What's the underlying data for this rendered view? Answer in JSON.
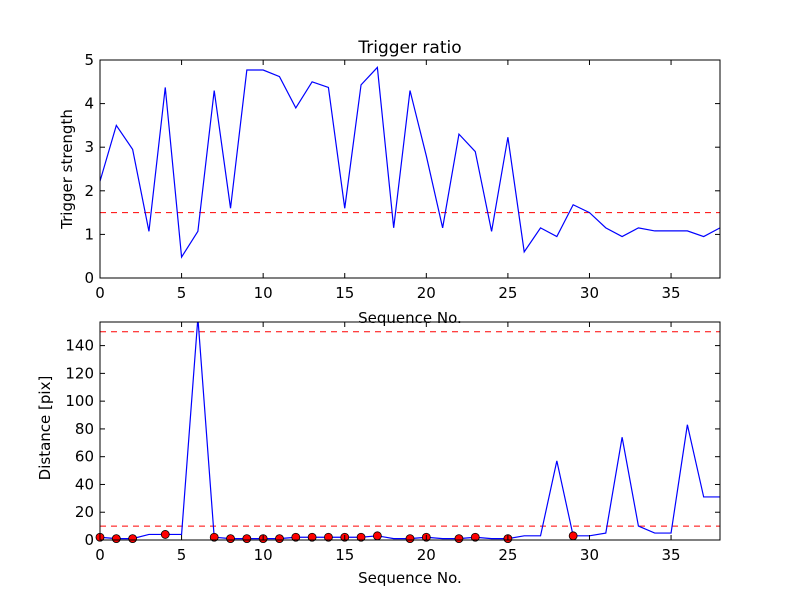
{
  "chart_data": [
    {
      "type": "line",
      "title": "Trigger ratio",
      "xlabel": "Sequence No.",
      "ylabel": "Trigger strength",
      "xlim": [
        0,
        38
      ],
      "ylim": [
        0,
        5
      ],
      "xticks": [
        0,
        5,
        10,
        15,
        20,
        25,
        30,
        35
      ],
      "yticks": [
        0,
        1,
        2,
        3,
        4,
        5
      ],
      "grid": false,
      "series": [
        {
          "color": "#0000ff",
          "x": [
            0,
            1,
            2,
            3,
            4,
            5,
            6,
            7,
            8,
            9,
            10,
            11,
            12,
            13,
            14,
            15,
            16,
            17,
            18,
            19,
            20,
            21,
            22,
            23,
            24,
            25,
            26,
            27,
            28,
            29,
            30,
            31,
            32,
            33,
            34,
            35,
            36,
            37,
            38
          ],
          "y": [
            2.22,
            3.5,
            2.95,
            1.07,
            4.37,
            0.48,
            1.07,
            4.3,
            1.6,
            4.77,
            4.77,
            4.62,
            3.9,
            4.5,
            4.37,
            1.6,
            4.43,
            4.83,
            1.15,
            4.3,
            2.8,
            1.15,
            3.3,
            2.9,
            1.07,
            3.23,
            0.6,
            1.15,
            0.95,
            1.68,
            1.5,
            1.15,
            0.95,
            1.15,
            1.08,
            1.08,
            1.08,
            0.95,
            1.15
          ]
        }
      ],
      "reference_lines": [
        {
          "orientation": "horizontal",
          "y": 1.5,
          "color": "#ff0000",
          "style": "dashed"
        }
      ]
    },
    {
      "type": "line",
      "title": "",
      "xlabel": "Sequence No.",
      "ylabel": "Distance [pix]",
      "xlim": [
        0,
        38
      ],
      "ylim": [
        0,
        157
      ],
      "xticks": [
        0,
        5,
        10,
        15,
        20,
        25,
        30,
        35
      ],
      "yticks": [
        0,
        20,
        40,
        60,
        80,
        100,
        120,
        140
      ],
      "grid": false,
      "series": [
        {
          "color": "#0000ff",
          "x": [
            0,
            1,
            2,
            3,
            4,
            5,
            6,
            7,
            8,
            9,
            10,
            11,
            12,
            13,
            14,
            15,
            16,
            17,
            18,
            19,
            20,
            21,
            22,
            23,
            24,
            25,
            26,
            27,
            28,
            29,
            30,
            31,
            32,
            33,
            34,
            35,
            36,
            37,
            38
          ],
          "y": [
            2,
            1,
            1,
            4,
            4,
            4,
            160,
            2,
            1,
            1,
            1,
            1,
            2,
            2,
            2,
            2,
            2,
            3,
            1,
            1,
            2,
            1,
            1,
            2,
            1,
            1,
            3,
            3,
            57,
            3,
            3,
            5,
            74,
            10,
            5,
            5,
            83,
            31,
            31
          ]
        }
      ],
      "markers": {
        "color": "#ff0000",
        "x": [
          0,
          1,
          2,
          4,
          7,
          8,
          9,
          10,
          11,
          12,
          13,
          14,
          15,
          16,
          17,
          19,
          20,
          22,
          23,
          25,
          29
        ],
        "y": [
          2,
          1,
          1,
          4,
          2,
          1,
          1,
          1,
          1,
          2,
          2,
          2,
          2,
          2,
          3,
          1,
          2,
          1,
          2,
          1,
          3
        ]
      },
      "reference_lines": [
        {
          "orientation": "horizontal",
          "y": 150,
          "color": "#ff0000",
          "style": "dashed"
        },
        {
          "orientation": "horizontal",
          "y": 10,
          "color": "#ff0000",
          "style": "dashed"
        }
      ]
    }
  ]
}
